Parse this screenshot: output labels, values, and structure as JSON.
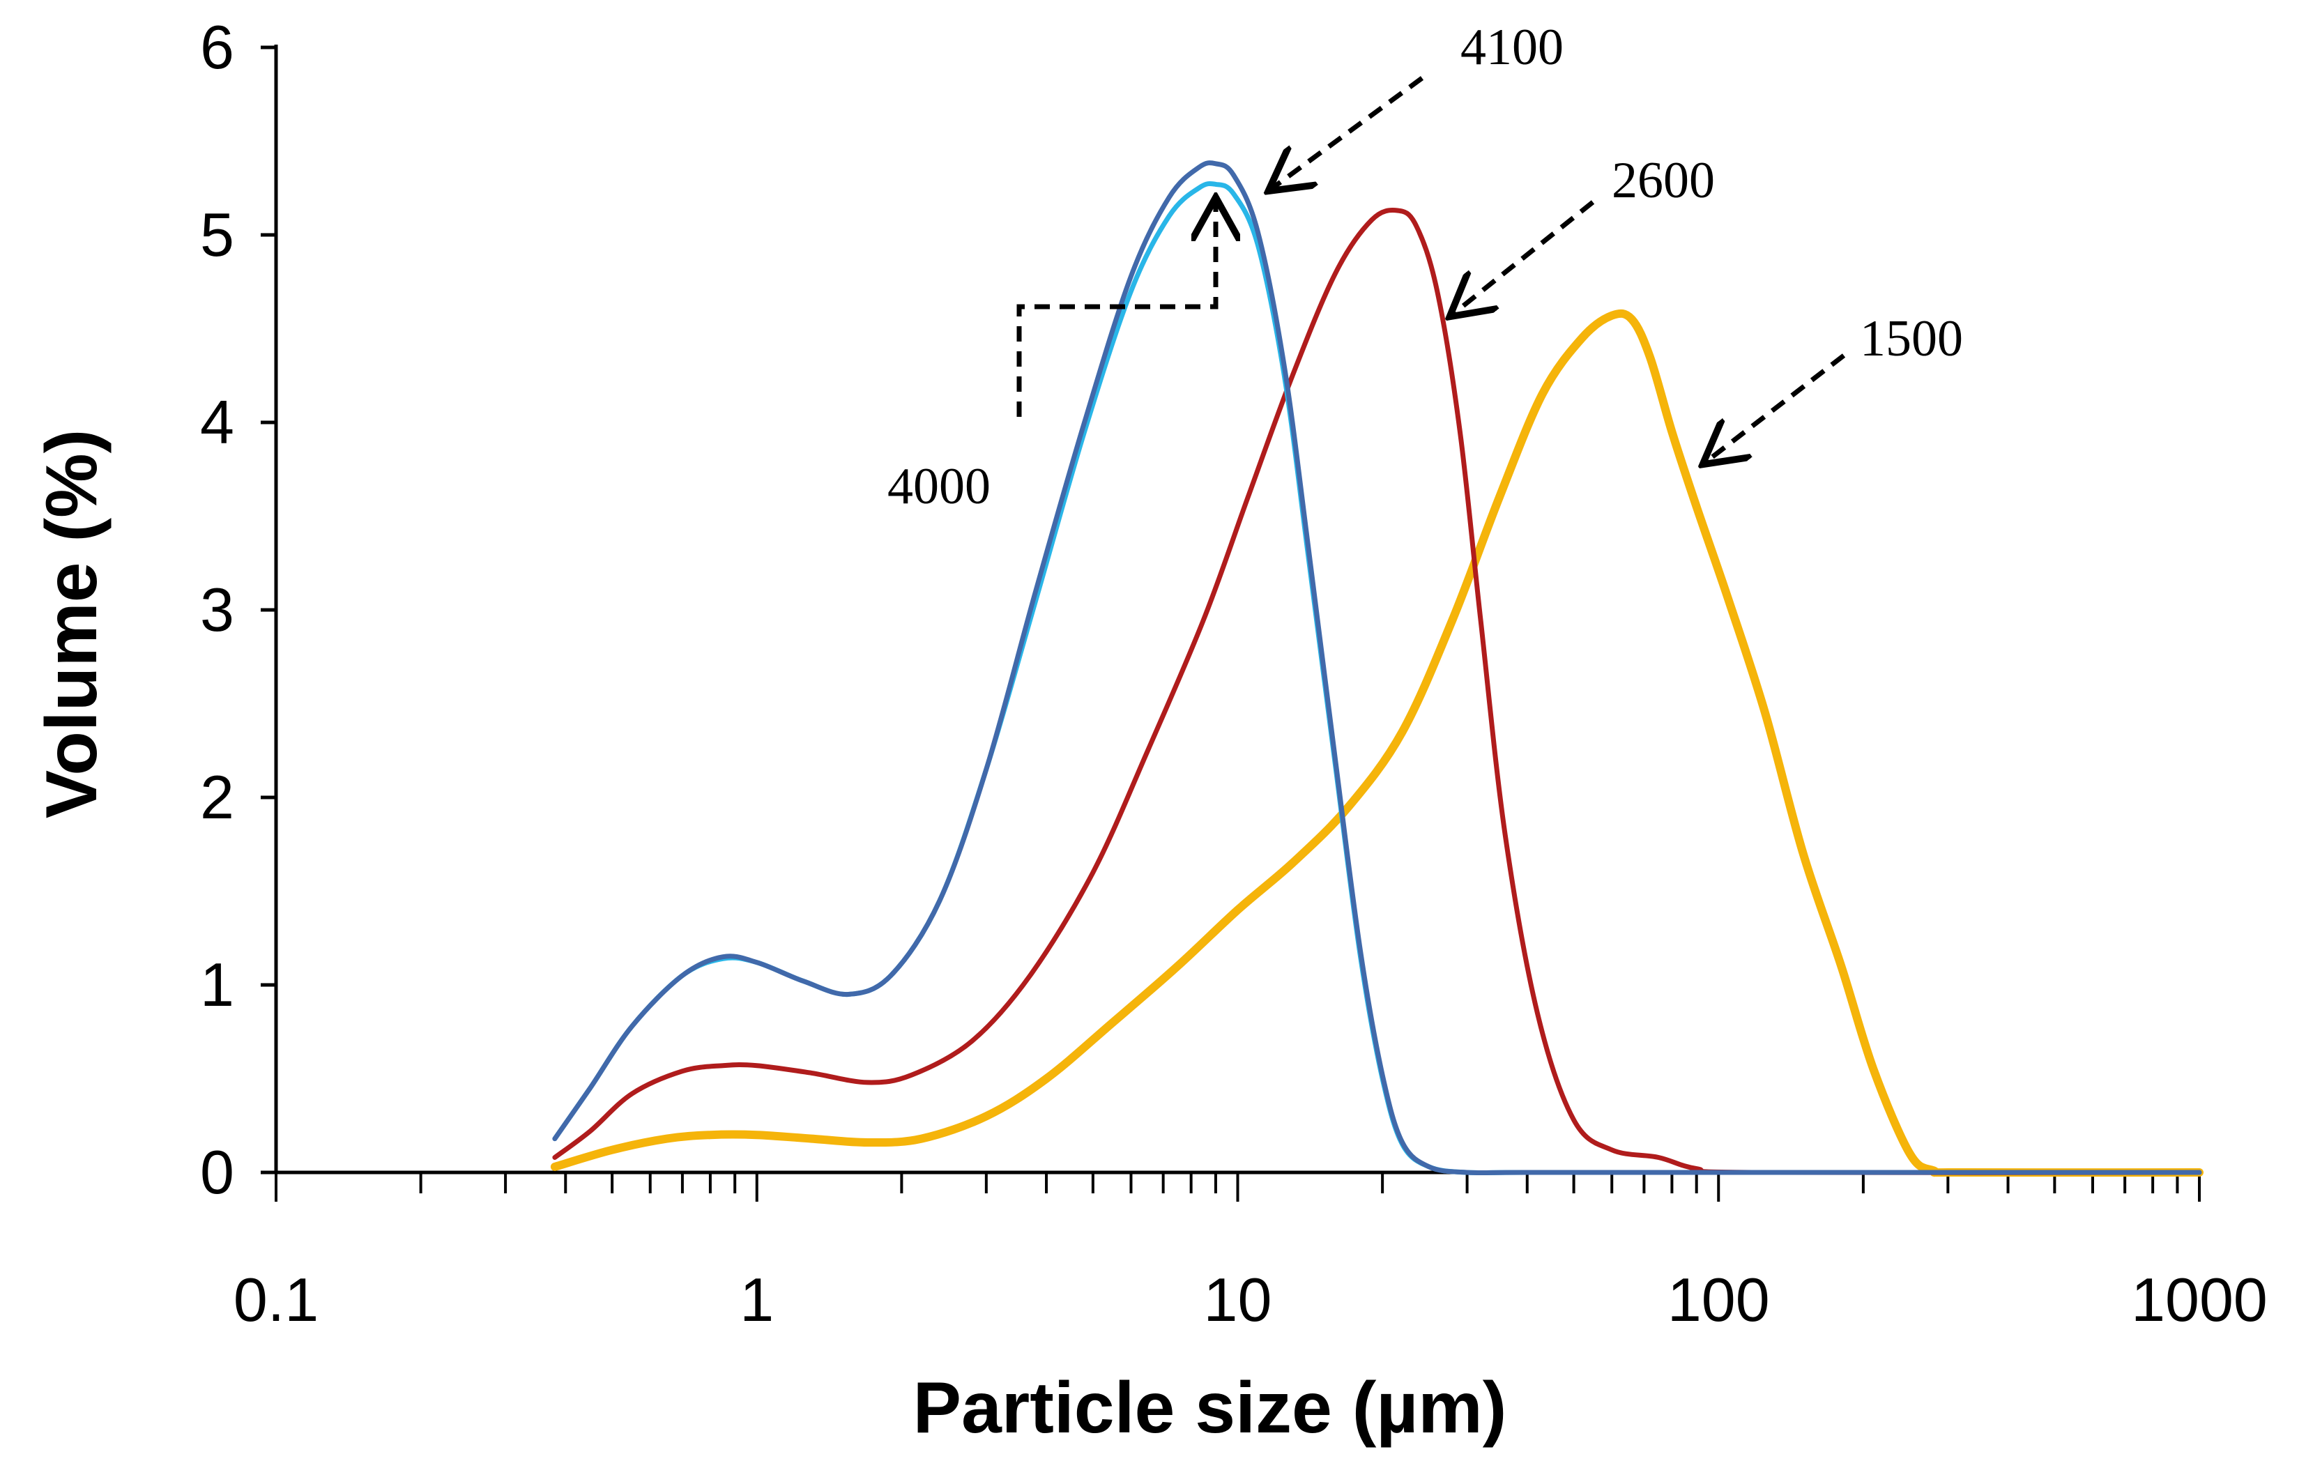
{
  "chart_data": {
    "type": "line",
    "title": "",
    "xlabel": "Particle size (µm)",
    "ylabel": "Volume (%)",
    "xscale": "log",
    "xlim": [
      0.1,
      1000
    ],
    "ylim": [
      0,
      6
    ],
    "x_ticks": [
      "0.1",
      "1",
      "10",
      "100",
      "1000"
    ],
    "y_ticks": [
      "0",
      "1",
      "2",
      "3",
      "4",
      "5",
      "6"
    ],
    "grid": false,
    "legend": "none",
    "series": [
      {
        "name": "4000",
        "color": "#29b6e8",
        "x": [
          0.38,
          0.45,
          0.55,
          0.7,
          0.85,
          1.0,
          1.25,
          1.55,
          1.9,
          2.4,
          3.0,
          3.8,
          4.8,
          6.0,
          7.2,
          8.3,
          9.0,
          9.8,
          11.0,
          12.5,
          14.0,
          16.0,
          18.0,
          20.0,
          22.0,
          25.0,
          30.0,
          40.0,
          100.0,
          300.0,
          1000.0
        ],
        "y": [
          0.18,
          0.45,
          0.78,
          1.05,
          1.14,
          1.12,
          1.02,
          0.95,
          1.05,
          1.45,
          2.15,
          3.05,
          3.95,
          4.7,
          5.1,
          5.25,
          5.27,
          5.22,
          4.95,
          4.25,
          3.3,
          2.15,
          1.15,
          0.5,
          0.15,
          0.03,
          0.0,
          0.0,
          0.0,
          0.0,
          0.0
        ]
      },
      {
        "name": "4100",
        "color": "#4169aa",
        "x": [
          0.38,
          0.45,
          0.55,
          0.7,
          0.85,
          1.0,
          1.25,
          1.55,
          1.9,
          2.4,
          3.0,
          3.8,
          4.8,
          6.0,
          7.2,
          8.3,
          9.0,
          9.8,
          11.0,
          12.5,
          14.0,
          16.0,
          18.0,
          20.0,
          22.0,
          25.0,
          30.0,
          40.0,
          100.0,
          300.0,
          1000.0
        ],
        "y": [
          0.18,
          0.45,
          0.78,
          1.05,
          1.15,
          1.12,
          1.02,
          0.95,
          1.05,
          1.45,
          2.15,
          3.1,
          4.0,
          4.78,
          5.2,
          5.36,
          5.38,
          5.32,
          5.02,
          4.3,
          3.35,
          2.18,
          1.18,
          0.52,
          0.16,
          0.03,
          0.0,
          0.0,
          0.0,
          0.0,
          0.0
        ]
      },
      {
        "name": "2600",
        "color": "#b01c1c",
        "x": [
          0.38,
          0.45,
          0.55,
          0.7,
          0.85,
          1.0,
          1.3,
          1.7,
          2.1,
          2.8,
          3.7,
          5.0,
          6.5,
          8.5,
          10.5,
          13.0,
          16.0,
          19.0,
          21.5,
          23.5,
          26.0,
          29.0,
          32.0,
          36.0,
          42.0,
          50.0,
          60.0,
          75.0,
          90.0,
          120.0,
          1000.0
        ],
        "y": [
          0.08,
          0.22,
          0.42,
          0.54,
          0.57,
          0.57,
          0.53,
          0.48,
          0.52,
          0.7,
          1.05,
          1.6,
          2.25,
          2.95,
          3.6,
          4.25,
          4.8,
          5.08,
          5.13,
          5.05,
          4.7,
          3.95,
          2.95,
          1.8,
          0.85,
          0.28,
          0.12,
          0.08,
          0.02,
          0.0,
          0.0
        ]
      },
      {
        "name": "1500",
        "color": "#f5b40a",
        "x": [
          0.38,
          0.5,
          0.65,
          0.8,
          1.0,
          1.3,
          1.7,
          2.2,
          3.0,
          4.0,
          5.5,
          7.5,
          10.0,
          13.0,
          17.0,
          22.0,
          28.0,
          35.0,
          43.0,
          52.0,
          60.0,
          66.0,
          72.0,
          80.0,
          90.0,
          105.0,
          125.0,
          150.0,
          180.0,
          210.0,
          250.0,
          280.0,
          320.0,
          1000.0
        ],
        "y": [
          0.03,
          0.12,
          0.18,
          0.2,
          0.2,
          0.18,
          0.16,
          0.18,
          0.3,
          0.5,
          0.8,
          1.1,
          1.4,
          1.65,
          1.95,
          2.35,
          2.95,
          3.6,
          4.15,
          4.45,
          4.57,
          4.55,
          4.35,
          3.95,
          3.55,
          3.05,
          2.45,
          1.7,
          1.1,
          0.55,
          0.1,
          0.01,
          0.0,
          0.0
        ]
      }
    ],
    "annotations": [
      {
        "text": "4100",
        "target_series": "4100"
      },
      {
        "text": "2600",
        "target_series": "2600"
      },
      {
        "text": "1500",
        "target_series": "1500"
      },
      {
        "text": "4000",
        "target_series": "4000"
      }
    ]
  }
}
